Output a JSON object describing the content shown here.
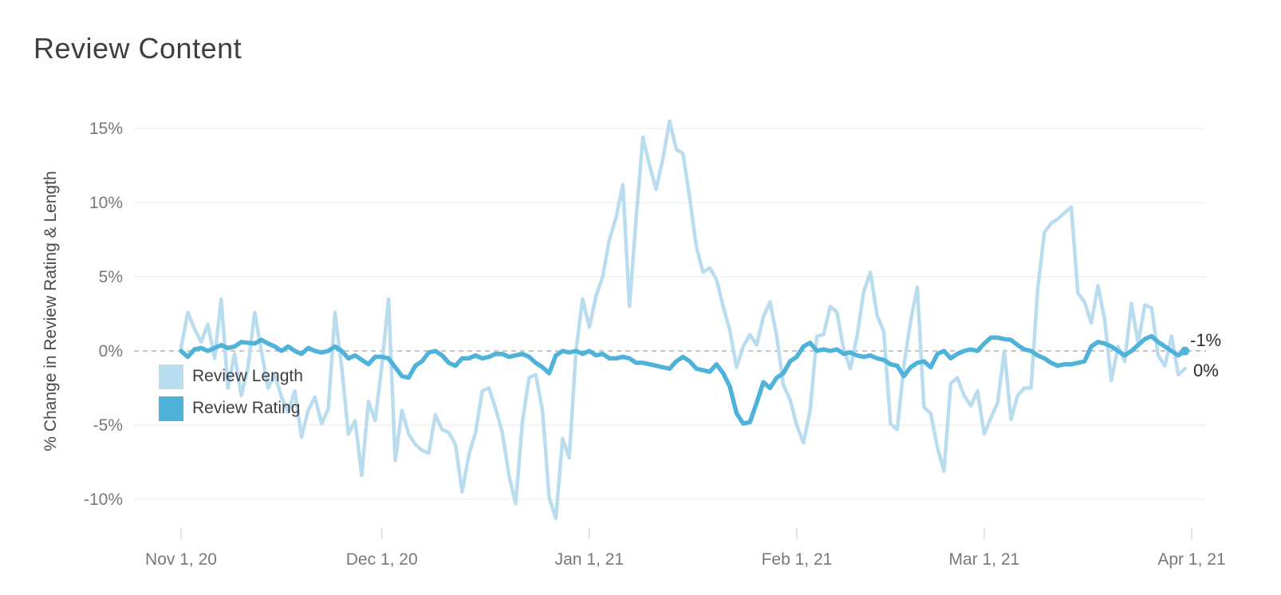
{
  "title": "Review Content",
  "chart_data": {
    "type": "line",
    "title": "Review Content",
    "xlabel": "",
    "ylabel": "% Change in Review Rating & Length",
    "x_unit": "daily data, day index 0 = Nov 1, 2020; last point = Mar 31, 2021",
    "x_tick_labels": [
      "Nov 1, 20",
      "Dec 1, 20",
      "Jan 1, 21",
      "Feb 1, 21",
      "Mar 1, 21",
      "Apr 1, 21"
    ],
    "x_tick_days": [
      0,
      30,
      61,
      92,
      120,
      151
    ],
    "y_ticks": [
      "15%",
      "10%",
      "5%",
      "0%",
      "-5%",
      "-10%"
    ],
    "y_tick_values": [
      15,
      10,
      5,
      0,
      -5,
      -10
    ],
    "ylim": [
      -11.5,
      16
    ],
    "grid": "horizontal, light; zero line dashed",
    "legend_position": "inside-left",
    "end_labels": [
      {
        "text": "-1%",
        "series": "Review Length"
      },
      {
        "text": "0%",
        "series": "Review Rating"
      }
    ],
    "series": [
      {
        "name": "Review Length",
        "color": "#b9ddef",
        "end_value_pct": -1,
        "values": [
          0.2,
          2.6,
          1.5,
          0.6,
          1.8,
          -0.5,
          3.5,
          -2.5,
          -0.2,
          -3.0,
          -1.1,
          2.6,
          0.0,
          -2.5,
          -1.6,
          -3.1,
          -4.1,
          -2.7,
          -5.8,
          -4.0,
          -3.1,
          -4.9,
          -3.9,
          2.6,
          -1.1,
          -5.6,
          -4.7,
          -8.4,
          -3.4,
          -4.7,
          -1.0,
          3.5,
          -7.4,
          -4.0,
          -5.6,
          -6.3,
          -6.7,
          -6.9,
          -4.3,
          -5.3,
          -5.5,
          -6.3,
          -9.5,
          -7.0,
          -5.5,
          -2.7,
          -2.5,
          -3.9,
          -5.5,
          -8.4,
          -10.3,
          -4.8,
          -1.8,
          -1.6,
          -4.0,
          -9.9,
          -11.3,
          -5.9,
          -7.2,
          0.0,
          3.5,
          1.6,
          3.7,
          5.0,
          7.5,
          9.0,
          11.2,
          3.0,
          9.0,
          14.4,
          12.5,
          10.9,
          13.0,
          15.5,
          13.6,
          13.3,
          10.3,
          7.0,
          5.3,
          5.6,
          4.8,
          3.0,
          1.4,
          -1.1,
          0.3,
          1.1,
          0.4,
          2.3,
          3.3,
          1.0,
          -2.3,
          -3.3,
          -5.0,
          -6.2,
          -4.0,
          1.0,
          1.1,
          3.0,
          2.6,
          0.1,
          -1.2,
          1.0,
          4.0,
          5.3,
          2.4,
          1.3,
          -4.9,
          -5.3,
          -1.0,
          2.0,
          4.3,
          -3.8,
          -4.2,
          -6.5,
          -8.1,
          -2.2,
          -1.8,
          -3.0,
          -3.7,
          -2.7,
          -5.6,
          -4.5,
          -3.5,
          0.0,
          -4.6,
          -3.0,
          -2.5,
          -2.5,
          4.2,
          8.0,
          8.6,
          8.9,
          9.3,
          9.7,
          3.9,
          3.3,
          1.9,
          4.4,
          2.1,
          -2.0,
          0.3,
          -0.7,
          3.2,
          0.5,
          3.1,
          2.9,
          -0.3,
          -1.0,
          1.0,
          -1.6,
          -1.2
        ]
      },
      {
        "name": "Review Rating",
        "color": "#4fb2d8",
        "end_value_pct": 0,
        "values": [
          0.0,
          -0.4,
          0.1,
          0.2,
          0.0,
          0.2,
          0.4,
          0.2,
          0.3,
          0.6,
          0.55,
          0.5,
          0.75,
          0.5,
          0.3,
          0.0,
          0.3,
          0.0,
          -0.2,
          0.2,
          0.0,
          -0.1,
          0.0,
          0.3,
          0.0,
          -0.5,
          -0.3,
          -0.6,
          -0.9,
          -0.4,
          -0.4,
          -0.5,
          -1.1,
          -1.7,
          -1.8,
          -1.0,
          -0.7,
          -0.1,
          0.0,
          -0.3,
          -0.8,
          -1.0,
          -0.5,
          -0.5,
          -0.3,
          -0.5,
          -0.4,
          -0.2,
          -0.2,
          -0.4,
          -0.3,
          -0.2,
          -0.4,
          -0.8,
          -1.1,
          -1.5,
          -0.3,
          0.0,
          -0.1,
          0.0,
          -0.2,
          0.0,
          -0.3,
          -0.2,
          -0.5,
          -0.5,
          -0.4,
          -0.5,
          -0.8,
          -0.8,
          -0.9,
          -1.0,
          -1.1,
          -1.2,
          -0.7,
          -0.4,
          -0.7,
          -1.2,
          -1.3,
          -1.4,
          -0.9,
          -1.5,
          -2.4,
          -4.2,
          -4.9,
          -4.8,
          -3.5,
          -2.1,
          -2.5,
          -1.8,
          -1.5,
          -0.7,
          -0.4,
          0.3,
          0.55,
          0.0,
          0.1,
          0.0,
          0.1,
          -0.2,
          -0.1,
          -0.3,
          -0.4,
          -0.3,
          -0.5,
          -0.6,
          -0.9,
          -1.0,
          -1.7,
          -1.1,
          -0.8,
          -0.7,
          -1.1,
          -0.2,
          0.0,
          -0.5,
          -0.2,
          0.0,
          0.1,
          0.0,
          0.5,
          0.9,
          0.9,
          0.8,
          0.75,
          0.4,
          0.1,
          0.0,
          -0.3,
          -0.5,
          -0.8,
          -1.0,
          -0.9,
          -0.9,
          -0.8,
          -0.7,
          0.3,
          0.6,
          0.5,
          0.3,
          0.0,
          -0.3,
          0.0,
          0.4,
          0.8,
          1.0,
          0.6,
          0.3,
          0.0,
          -0.3,
          0.0
        ]
      }
    ],
    "colors": {
      "review_length": "#b9ddef",
      "review_rating": "#4fb2d8",
      "gridline": "#efefef",
      "zero_line": "#b2b2b2",
      "tick_label": "#787878",
      "title_text": "#3f3f3f",
      "end_label_text": "#2d2d2d"
    }
  }
}
